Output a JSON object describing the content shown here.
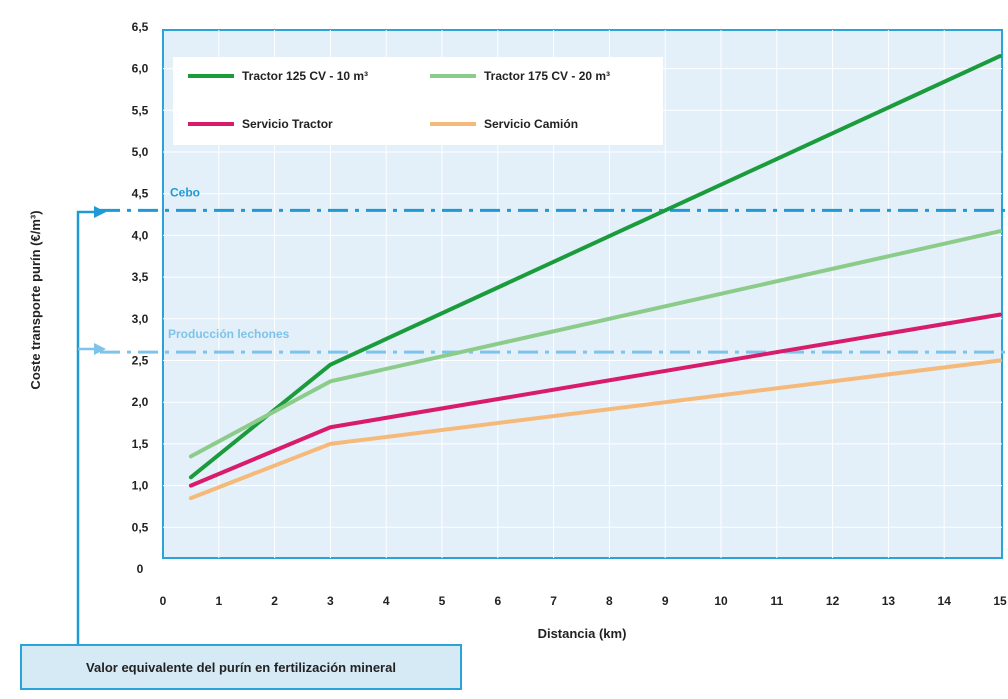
{
  "chart_data": {
    "type": "line",
    "xlabel": "Distancia (km)",
    "ylabel": "Coste transporte purín (€/m³)",
    "xlim": [
      0,
      15
    ],
    "ylim": [
      0,
      6.5
    ],
    "x_ticks": [
      "0",
      "1",
      "2",
      "3",
      "4",
      "5",
      "6",
      "7",
      "8",
      "9",
      "10",
      "11",
      "12",
      "13",
      "14",
      "15"
    ],
    "y_ticks": [
      "0",
      "0,5",
      "1,0",
      "1,5",
      "2,0",
      "2,5",
      "3,0",
      "3,5",
      "4,0",
      "4,5",
      "5,0",
      "5,5",
      "6,0",
      "6,5"
    ],
    "grid": true,
    "legend_position": "top-left",
    "series": [
      {
        "name": "Tractor 125 CV - 10 m³",
        "color": "#1a9c3c",
        "points": [
          [
            0.5,
            1.1
          ],
          [
            3,
            2.45
          ],
          [
            15,
            6.15
          ]
        ]
      },
      {
        "name": "Tractor 175 CV - 20 m³",
        "color": "#8ccc8a",
        "points": [
          [
            0.5,
            1.35
          ],
          [
            3,
            2.25
          ],
          [
            15,
            4.05
          ]
        ]
      },
      {
        "name": "Servicio Tractor",
        "color": "#d81b6a",
        "points": [
          [
            0.5,
            1.0
          ],
          [
            3,
            1.7
          ],
          [
            15,
            3.05
          ]
        ]
      },
      {
        "name": "Servicio Camión",
        "color": "#f5b97a",
        "points": [
          [
            0.5,
            0.85
          ],
          [
            3,
            1.5
          ],
          [
            15,
            2.5
          ]
        ]
      }
    ],
    "reference_lines": [
      {
        "label": "Cebo",
        "y": 4.3,
        "color": "#1e9ad6"
      },
      {
        "label": "Producción lechones",
        "y": 2.6,
        "color": "#7ec3ea"
      }
    ],
    "callout": "Valor equivalente del purín en fertilización mineral"
  }
}
